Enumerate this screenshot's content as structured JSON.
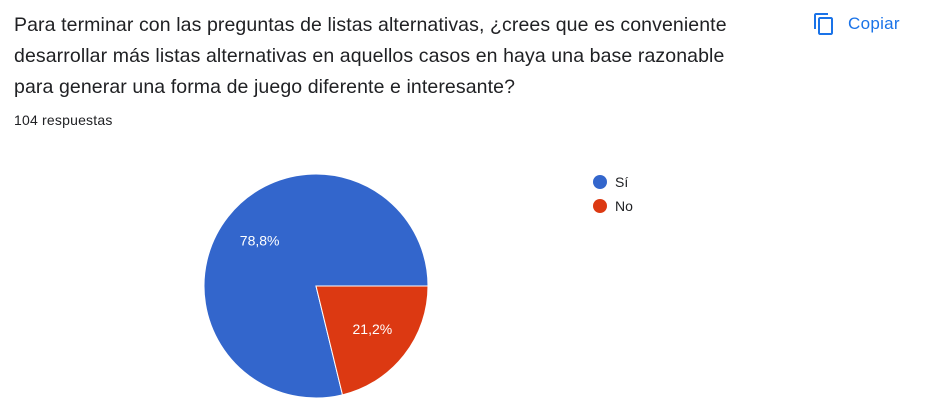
{
  "question": {
    "lines": [
      "Para terminar con las preguntas de listas alternativas, ¿crees que es conveniente",
      "desarrollar más listas alternativas en aquellos casos en haya una base razonable",
      "para generar una forma de juego diferente e interesante?"
    ],
    "responses": "104 respuestas"
  },
  "copy_button": {
    "label": "Copiar",
    "icon": "copy-icon",
    "color": "#1a73e8"
  },
  "chart_data": {
    "type": "pie",
    "slices": [
      {
        "label": "Sí",
        "value": 78.8,
        "display": "78,8%",
        "color": "#3366cc"
      },
      {
        "label": "No",
        "value": 21.2,
        "display": "21,2%",
        "color": "#dc3912"
      }
    ],
    "start_angle_deg": 0,
    "direction": "counterclockwise",
    "legend_position": "right"
  }
}
